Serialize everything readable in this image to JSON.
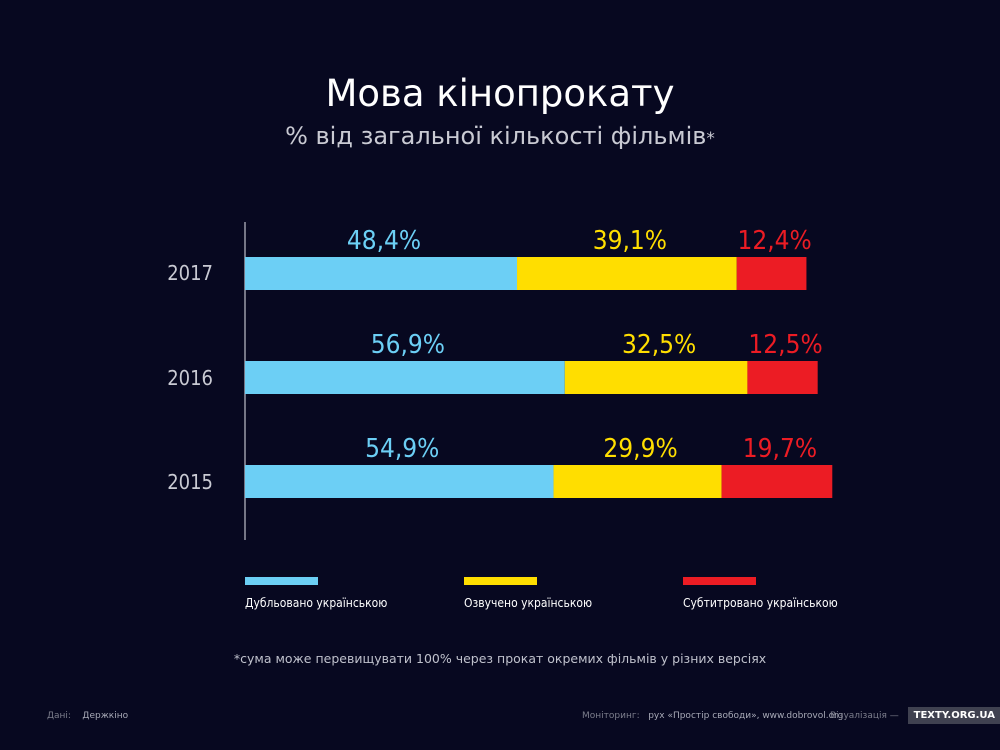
{
  "header": {
    "title": "Мова кінопрокату",
    "subtitle": "% від загальної кількості фільмів",
    "subtitle_mark": "*"
  },
  "chart_data": {
    "type": "bar",
    "orientation": "horizontal",
    "stacked": true,
    "categories": [
      "2017",
      "2016",
      "2015"
    ],
    "series": [
      {
        "name": "Дубльовано українською",
        "color": "#6ccff5",
        "values": [
          48.4,
          56.9,
          54.9
        ],
        "labels": [
          "48,4%",
          "56,9%",
          "54,9%"
        ]
      },
      {
        "name": "Озвучено українською",
        "color": "#ffde00",
        "values": [
          39.1,
          32.5,
          29.9
        ],
        "labels": [
          "39,1%",
          "32,5%",
          "29,9%"
        ]
      },
      {
        "name": "Субтитровано українською",
        "color": "#ec1c24",
        "values": [
          12.4,
          12.5,
          19.7
        ],
        "labels": [
          "12,4%",
          "12,5%",
          "19,7%"
        ]
      }
    ],
    "grid": false,
    "legend_position": "bottom"
  },
  "footnote": "*сума може перевищувати 100% через прокат окремих фільмів у різних версіях",
  "footer": {
    "data_label": "Дані:",
    "data_value": "Держкіно",
    "monitoring_label": "Моніторинг:",
    "monitoring_value": "рух «Простір свободи», www.dobrovol.org",
    "viz_label": "Візуалізація —",
    "brand": "TEXTY.ORG.UA"
  },
  "colors": {
    "background": "#070820",
    "axis": "#9a9aa8",
    "category_label": "#c9cad3"
  }
}
